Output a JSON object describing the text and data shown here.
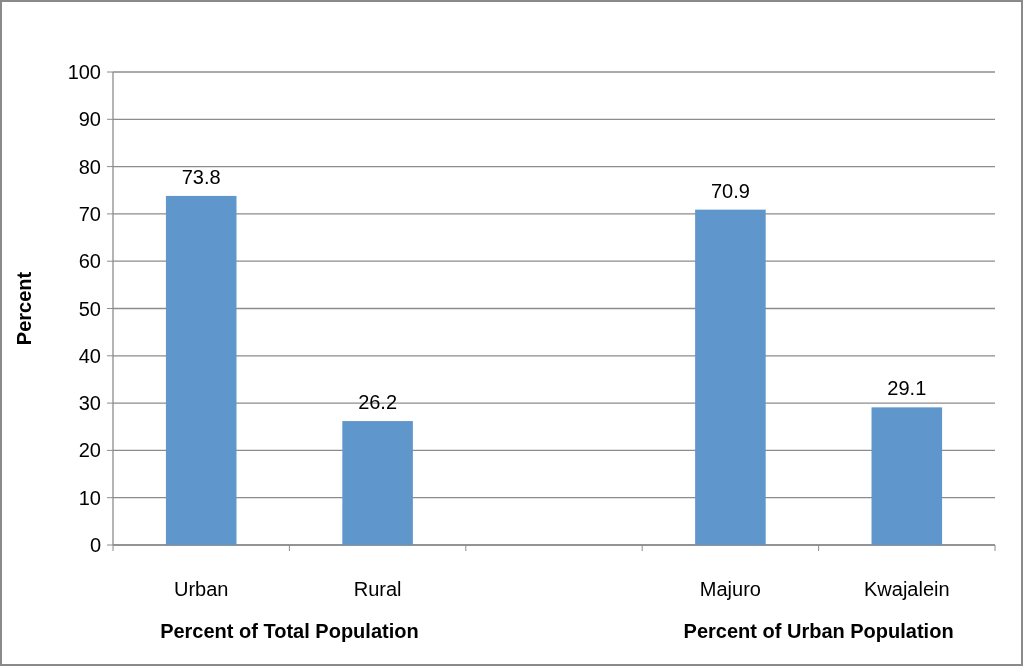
{
  "chart_data": {
    "type": "bar",
    "ylabel": "Percent",
    "categories": [
      "Urban",
      "Rural",
      null,
      "Majuro",
      "Kwajalein"
    ],
    "values": [
      73.8,
      26.2,
      null,
      70.9,
      29.1
    ],
    "color": "#5f96cc",
    "ylim": [
      0,
      100
    ],
    "yticks": [
      0,
      10,
      20,
      30,
      40,
      50,
      60,
      70,
      80,
      90,
      100
    ],
    "grid": "y",
    "data_labels": true,
    "annotations": [
      "Percent of Total Population",
      "Percent of Urban Population"
    ]
  }
}
